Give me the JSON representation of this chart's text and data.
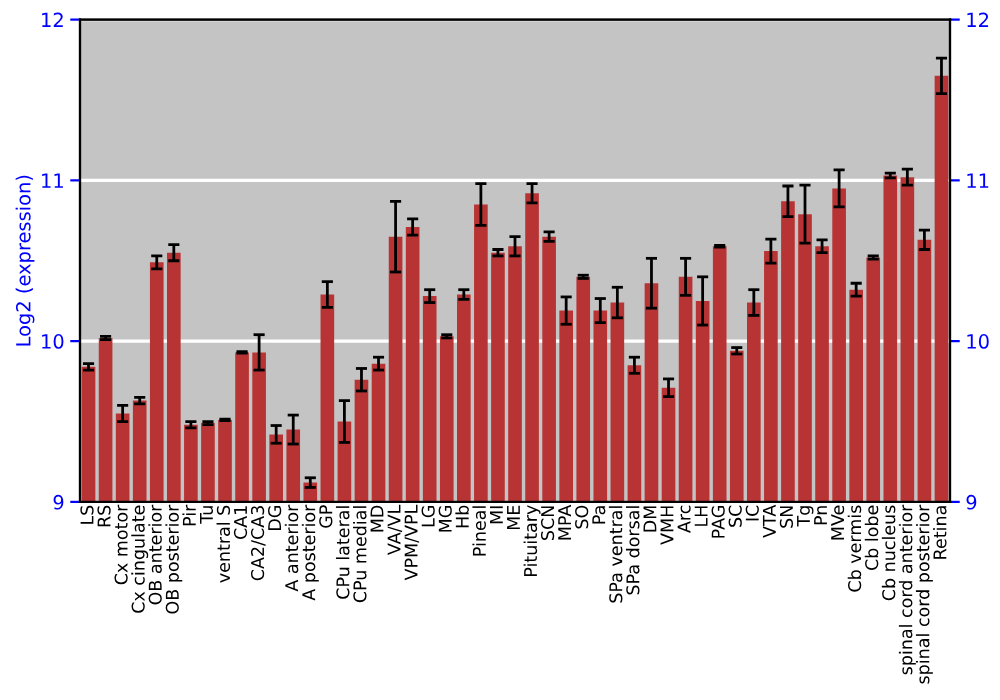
{
  "chart_data": {
    "type": "bar",
    "ylabel": "Log2 (expression)",
    "categories": [
      "LS",
      "RS",
      "Cx motor",
      "Cx cingulate",
      "OB anterior",
      "OB posterior",
      "Pir",
      "Tu",
      "ventral S",
      "CA1",
      "CA2/CA3",
      "DG",
      "A anterior",
      "A posterior",
      "GP",
      "CPu lateral",
      "CPu medial",
      "MD",
      "VA/VL",
      "VPM/VPL",
      "LG",
      "MG",
      "Hb",
      "Pineal",
      "MI",
      "ME",
      "Pituitary",
      "SCN",
      "MPA",
      "SO",
      "Pa",
      "SPa ventral",
      "SPa dorsal",
      "DM",
      "VMH",
      "Arc",
      "LH",
      "PAG",
      "SC",
      "IC",
      "VTA",
      "SN",
      "Tg",
      "Pn",
      "MVe",
      "Cb vermis",
      "Cb lobe",
      "Cb nucleus",
      "spinal cord anterior",
      "spinal cord posterior",
      "Retina"
    ],
    "values": [
      9.84,
      10.02,
      9.55,
      9.63,
      10.49,
      10.55,
      9.48,
      9.49,
      9.51,
      9.93,
      9.93,
      9.42,
      9.45,
      9.12,
      10.29,
      9.5,
      9.76,
      9.86,
      10.65,
      10.71,
      10.28,
      10.03,
      10.29,
      10.85,
      10.55,
      10.59,
      10.92,
      10.65,
      10.19,
      10.4,
      10.19,
      10.24,
      9.85,
      10.36,
      9.71,
      10.4,
      10.25,
      10.59,
      9.94,
      10.24,
      10.56,
      10.87,
      10.79,
      10.59,
      10.95,
      10.32,
      10.52,
      11.03,
      11.02,
      10.63,
      11.65
    ],
    "errors": [
      0.02,
      0.01,
      0.05,
      0.02,
      0.04,
      0.05,
      0.02,
      0.01,
      0.005,
      0.005,
      0.11,
      0.055,
      0.09,
      0.03,
      0.08,
      0.13,
      0.07,
      0.04,
      0.22,
      0.05,
      0.04,
      0.01,
      0.03,
      0.13,
      0.02,
      0.06,
      0.06,
      0.03,
      0.085,
      0.01,
      0.075,
      0.095,
      0.05,
      0.155,
      0.055,
      0.115,
      0.15,
      0.005,
      0.02,
      0.08,
      0.075,
      0.095,
      0.18,
      0.04,
      0.115,
      0.04,
      0.01,
      0.015,
      0.05,
      0.06,
      0.11
    ],
    "color": "#b83434",
    "ylim": [
      9,
      12
    ],
    "yticks": [
      9,
      10,
      11,
      12
    ],
    "y2lim": [
      9,
      12
    ],
    "y2ticks": [
      9,
      10,
      11,
      12
    ],
    "grid": "y"
  }
}
